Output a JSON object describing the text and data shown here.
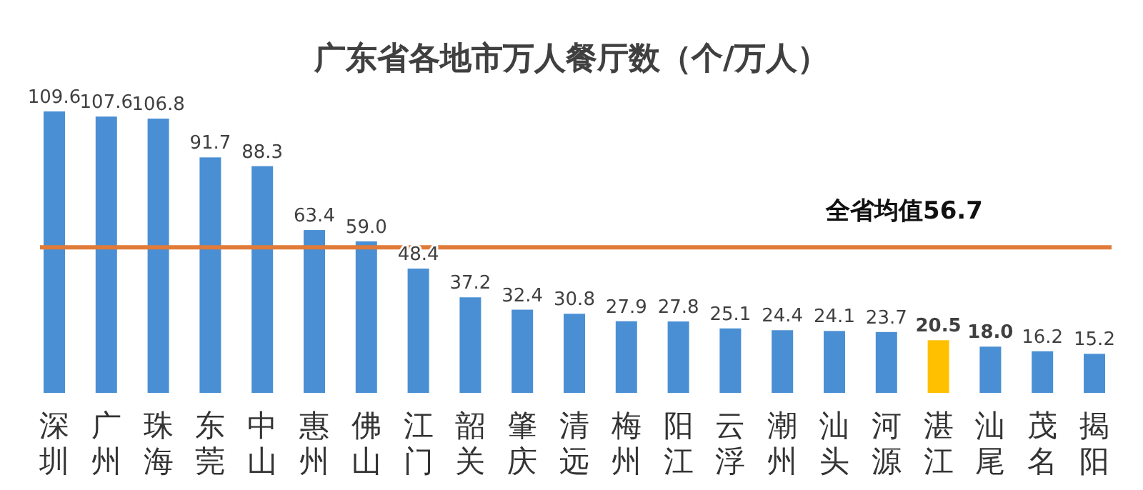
{
  "chart_data": {
    "type": "bar",
    "title": "广东省各地市万人餐厅数（个/万人）",
    "categories": [
      "深圳",
      "广州",
      "珠海",
      "东莞",
      "中山",
      "惠州",
      "佛山",
      "江门",
      "韶关",
      "肇庆",
      "清远",
      "梅州",
      "阳江",
      "云浮",
      "潮州",
      "汕头",
      "河源",
      "湛江",
      "汕尾",
      "茂名",
      "揭阳"
    ],
    "values": [
      109.6,
      107.6,
      106.8,
      91.7,
      88.3,
      63.4,
      59.0,
      48.4,
      37.2,
      32.4,
      30.8,
      27.9,
      27.8,
      25.1,
      24.4,
      24.1,
      23.7,
      20.5,
      18.0,
      16.2,
      15.2
    ],
    "value_labels": [
      "109.6",
      "107.6",
      "106.8",
      "91.7",
      "88.3",
      "63.4",
      "59.0",
      "48.4",
      "37.2",
      "32.4",
      "30.8",
      "27.9",
      "27.8",
      "25.1",
      "24.4",
      "24.1",
      "23.7",
      "**20.5**",
      "**18.0**",
      "16.2",
      "15.2"
    ],
    "colors": [
      "#4a8fd4",
      "#4a8fd4",
      "#4a8fd4",
      "#4a8fd4",
      "#4a8fd4",
      "#4a8fd4",
      "#4a8fd4",
      "#4a8fd4",
      "#4a8fd4",
      "#4a8fd4",
      "#4a8fd4",
      "#4a8fd4",
      "#4a8fd4",
      "#4a8fd4",
      "#4a8fd4",
      "#4a8fd4",
      "#4a8fd4",
      "#ffc000",
      "#4a8fd4",
      "#4a8fd4",
      "#4a8fd4"
    ],
    "ref_lines": [
      {
        "axis": "y",
        "value": 56.7,
        "label": "全省均值56.7",
        "color": "#e07b39"
      }
    ],
    "grid": false
  }
}
